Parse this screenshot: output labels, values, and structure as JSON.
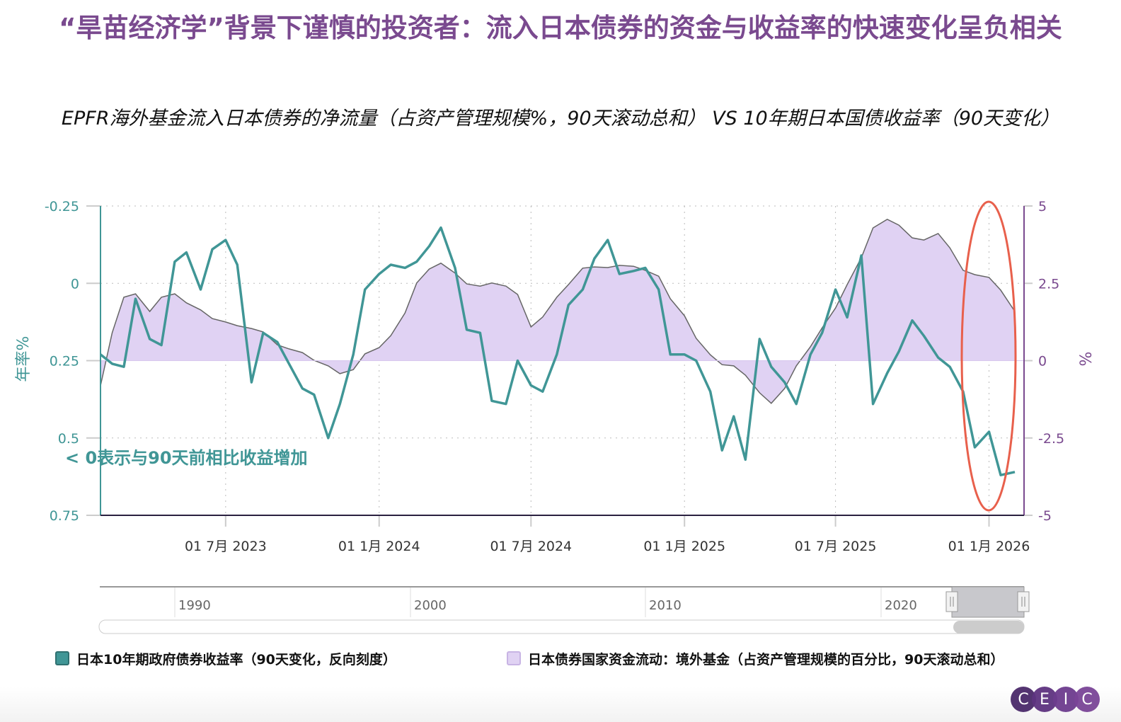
{
  "title": "“旱苗经济学”背景下谨慎的投资者：流入日本债券的资金与收益率的快速变化呈负相关",
  "subtitle": "EPFR海外基金流入日本债券的净流量（占资产管理规模%，90天滚动总和） VS 10年期日本国债收益率（90天变化）",
  "annotation": "< 0表示与90天前相比收益增加",
  "colors": {
    "yield": "#409696",
    "flow_fill": "#e0d2f3",
    "flow_line": "#666666",
    "title": "#7a4a8f",
    "highlight": "#e8604c",
    "right_axis": "#7a4a8f"
  },
  "chart_data": {
    "type": "line",
    "x_type": "date",
    "xlim": [
      "2023-02-01",
      "2026-02-12"
    ],
    "x_ticks": [
      {
        "date": "2023-07-01",
        "label": "01 7月 2023"
      },
      {
        "date": "2024-01-01",
        "label": "01 1月 2024"
      },
      {
        "date": "2024-07-01",
        "label": "01 7月 2024"
      },
      {
        "date": "2025-01-01",
        "label": "01 1月 2025"
      },
      {
        "date": "2025-07-01",
        "label": "01 7月 2025"
      },
      {
        "date": "2026-01-01",
        "label": "01 1月 2026"
      }
    ],
    "y_left": {
      "label": "年率%",
      "lim": [
        -0.25,
        0.75
      ],
      "reversed": true,
      "ticks": [
        "-0.25",
        "0",
        "0.25",
        "0.5",
        "0.75"
      ]
    },
    "y_right": {
      "label": "%",
      "lim": [
        -5,
        5
      ],
      "ticks": [
        "5",
        "2.5",
        "0",
        "-2.5",
        "-5"
      ]
    },
    "grid": true,
    "legend_position": "bottom",
    "x": [
      "2023-02-01",
      "2023-02-15",
      "2023-03-01",
      "2023-03-15",
      "2023-04-01",
      "2023-04-15",
      "2023-05-01",
      "2023-05-15",
      "2023-06-01",
      "2023-06-15",
      "2023-07-01",
      "2023-07-15",
      "2023-08-01",
      "2023-08-15",
      "2023-09-01",
      "2023-09-15",
      "2023-10-01",
      "2023-10-15",
      "2023-11-01",
      "2023-11-15",
      "2023-12-01",
      "2023-12-15",
      "2024-01-01",
      "2024-01-15",
      "2024-02-01",
      "2024-02-15",
      "2024-03-01",
      "2024-03-15",
      "2024-04-01",
      "2024-04-15",
      "2024-05-01",
      "2024-05-15",
      "2024-06-01",
      "2024-06-15",
      "2024-07-01",
      "2024-07-15",
      "2024-08-01",
      "2024-08-15",
      "2024-09-01",
      "2024-09-15",
      "2024-10-01",
      "2024-10-15",
      "2024-11-01",
      "2024-11-15",
      "2024-12-01",
      "2024-12-15",
      "2025-01-01",
      "2025-01-15",
      "2025-02-01",
      "2025-02-15",
      "2025-03-01",
      "2025-03-15",
      "2025-04-01",
      "2025-04-15",
      "2025-05-01",
      "2025-05-15",
      "2025-06-01",
      "2025-06-15",
      "2025-07-01",
      "2025-07-15",
      "2025-08-01",
      "2025-08-15",
      "2025-09-01",
      "2025-09-15",
      "2025-10-01",
      "2025-10-15",
      "2025-11-01",
      "2025-11-15",
      "2025-12-01",
      "2025-12-15",
      "2026-01-01",
      "2026-01-15",
      "2026-02-01"
    ],
    "series": [
      {
        "name": "日本10年期政府债券收益率（90天变化，反向刻度）",
        "axis": "left",
        "style": "line",
        "values": [
          0.23,
          0.26,
          0.27,
          0.05,
          0.18,
          0.2,
          -0.07,
          -0.1,
          0.02,
          -0.11,
          -0.14,
          -0.06,
          0.32,
          0.16,
          0.19,
          0.26,
          0.34,
          0.36,
          0.5,
          0.39,
          0.23,
          0.02,
          -0.03,
          -0.06,
          -0.05,
          -0.07,
          -0.12,
          -0.18,
          -0.05,
          0.15,
          0.16,
          0.38,
          0.39,
          0.25,
          0.33,
          0.35,
          0.23,
          0.07,
          0.02,
          -0.08,
          -0.14,
          -0.03,
          -0.04,
          -0.05,
          0.02,
          0.23,
          0.23,
          0.25,
          0.35,
          0.54,
          0.43,
          0.57,
          0.18,
          0.27,
          0.32,
          0.39,
          0.23,
          0.16,
          0.02,
          0.11,
          -0.09,
          0.39,
          0.29,
          0.22,
          0.12,
          0.17,
          0.24,
          0.27,
          0.35,
          0.53,
          0.48,
          0.62,
          0.61
        ]
      },
      {
        "name": "日本债券国家资金流动：境外基金（占资产管理规模的百分比，90天滚动总和）",
        "axis": "right",
        "style": "area",
        "values": [
          -0.81,
          0.9,
          2.05,
          2.16,
          1.59,
          2.05,
          2.16,
          1.87,
          1.64,
          1.36,
          1.25,
          1.13,
          1.04,
          0.93,
          0.51,
          0.38,
          0.26,
          0.01,
          -0.17,
          -0.42,
          -0.29,
          0.22,
          0.42,
          0.81,
          1.54,
          2.51,
          2.96,
          3.15,
          2.83,
          2.48,
          2.41,
          2.51,
          2.41,
          2.14,
          1.09,
          1.41,
          2.05,
          2.46,
          2.99,
          3.03,
          3.01,
          3.08,
          3.05,
          2.92,
          2.73,
          2.0,
          1.45,
          0.72,
          0.19,
          -0.13,
          -0.17,
          -0.47,
          -1.04,
          -1.38,
          -0.9,
          -0.17,
          0.45,
          1.06,
          1.7,
          2.46,
          3.33,
          4.29,
          4.57,
          4.38,
          3.97,
          3.9,
          4.11,
          3.65,
          2.92,
          2.78,
          2.69,
          2.28,
          1.59
        ]
      }
    ],
    "highlight": {
      "shape": "ellipse",
      "around": "2026-01-01"
    }
  },
  "navigator": {
    "labels": [
      "1990",
      "2000",
      "2010",
      "2020"
    ],
    "selected_range": [
      "2023-02-01",
      "2026-02-12"
    ]
  },
  "logo": {
    "letters": [
      "C",
      "E",
      "I",
      "C"
    ],
    "colors": [
      "#4b2a6a",
      "#5e3380",
      "#6d3c8e",
      "#7a4597"
    ]
  }
}
